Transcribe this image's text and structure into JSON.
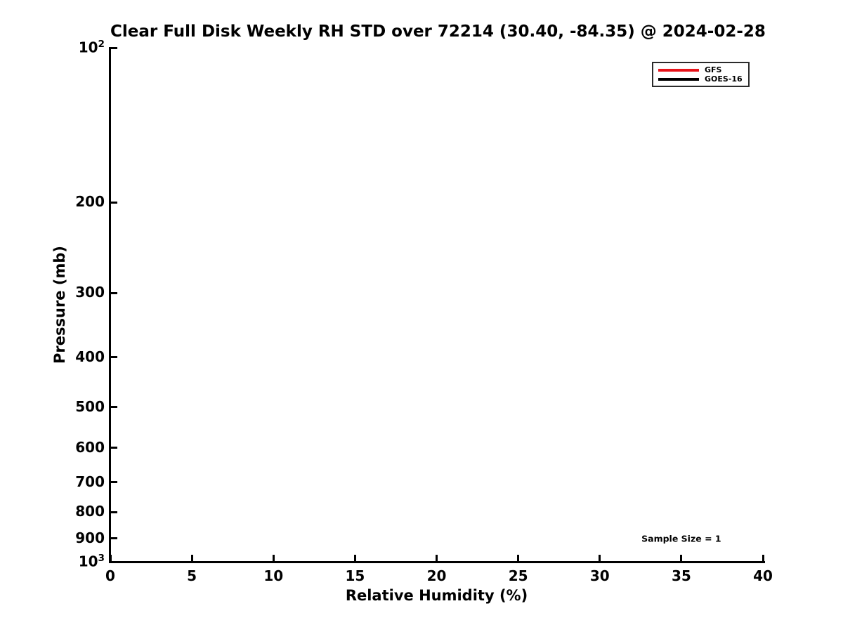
{
  "chart_data": {
    "type": "line",
    "title": "Clear Full Disk Weekly RH STD over 72214 (30.40, -84.35) @ 2024-02-28",
    "xlabel": "Relative Humidity (%)",
    "ylabel": "Pressure (mb)",
    "xlim": [
      0,
      40
    ],
    "x_ticks": [
      0,
      5,
      10,
      15,
      20,
      25,
      30,
      35,
      40
    ],
    "ylim": [
      100,
      1000
    ],
    "y_scale": "log",
    "y_inverted": true,
    "y_ticks": [
      {
        "value": 100,
        "label": "10^2"
      },
      {
        "value": 200,
        "label": "200"
      },
      {
        "value": 300,
        "label": "300"
      },
      {
        "value": 400,
        "label": "400"
      },
      {
        "value": 500,
        "label": "500"
      },
      {
        "value": 600,
        "label": "600"
      },
      {
        "value": 700,
        "label": "700"
      },
      {
        "value": 800,
        "label": "800"
      },
      {
        "value": 900,
        "label": "900"
      },
      {
        "value": 1000,
        "label": "10^3"
      }
    ],
    "grid": false,
    "legend_position": "upper-right",
    "series": [
      {
        "name": "GFS",
        "color": "#e8131a",
        "x": [],
        "y": []
      },
      {
        "name": "GOES-16",
        "color": "#000000",
        "x": [],
        "y": []
      }
    ],
    "annotations": [
      {
        "text": "Sample Size = 1",
        "x": 35,
        "y": 900
      }
    ],
    "axis_color": "#000000",
    "background_color": "#ffffff"
  }
}
